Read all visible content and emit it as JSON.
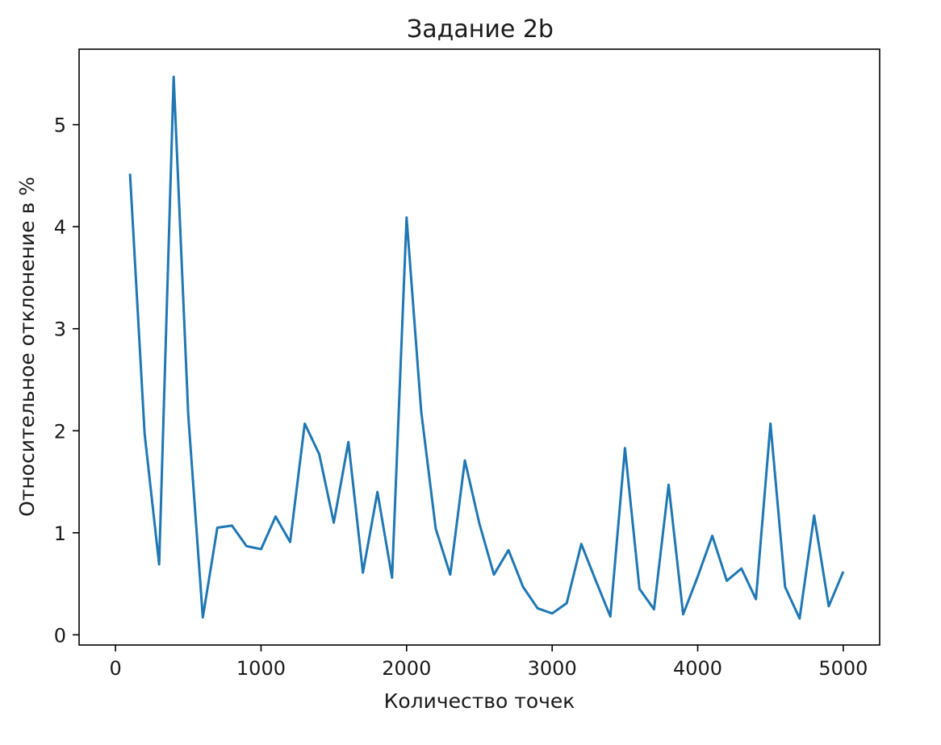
{
  "chart_data": {
    "type": "line",
    "title": "Задание 2b",
    "xlabel": "Количество точек",
    "ylabel": "Относительное отклонение в %",
    "xlim": [
      -250,
      5250
    ],
    "ylim": [
      -0.1,
      5.74
    ],
    "xticks": [
      0,
      1000,
      2000,
      3000,
      4000,
      5000
    ],
    "xtick_labels": [
      "0",
      "1000",
      "2000",
      "3000",
      "4000",
      "5000"
    ],
    "yticks": [
      0,
      1,
      2,
      3,
      4,
      5
    ],
    "ytick_labels": [
      "0",
      "1",
      "2",
      "3",
      "4",
      "5"
    ],
    "grid": false,
    "series": [
      {
        "color": "#1f77b4",
        "x": [
          100,
          200,
          300,
          400,
          500,
          600,
          700,
          800,
          900,
          1000,
          1100,
          1200,
          1300,
          1400,
          1500,
          1600,
          1700,
          1800,
          1900,
          2000,
          2100,
          2200,
          2300,
          2400,
          2500,
          2600,
          2700,
          2800,
          2900,
          3000,
          3100,
          3200,
          3300,
          3400,
          3500,
          3600,
          3700,
          3800,
          3900,
          4000,
          4100,
          4200,
          4300,
          4400,
          4500,
          4600,
          4700,
          4800,
          4900,
          5000
        ],
        "y": [
          4.52,
          1.97,
          0.69,
          5.47,
          2.15,
          0.17,
          1.05,
          1.07,
          0.87,
          0.84,
          1.16,
          0.91,
          2.07,
          1.77,
          1.1,
          1.89,
          0.61,
          1.4,
          0.56,
          4.09,
          2.19,
          1.04,
          0.59,
          1.71,
          1.09,
          0.59,
          0.83,
          0.47,
          0.26,
          0.21,
          0.31,
          0.89,
          0.53,
          0.18,
          1.83,
          0.45,
          0.25,
          1.47,
          0.2,
          0.57,
          0.97,
          0.53,
          0.65,
          0.35,
          2.07,
          0.47,
          0.16,
          1.17,
          0.28,
          0.62
        ]
      }
    ]
  }
}
